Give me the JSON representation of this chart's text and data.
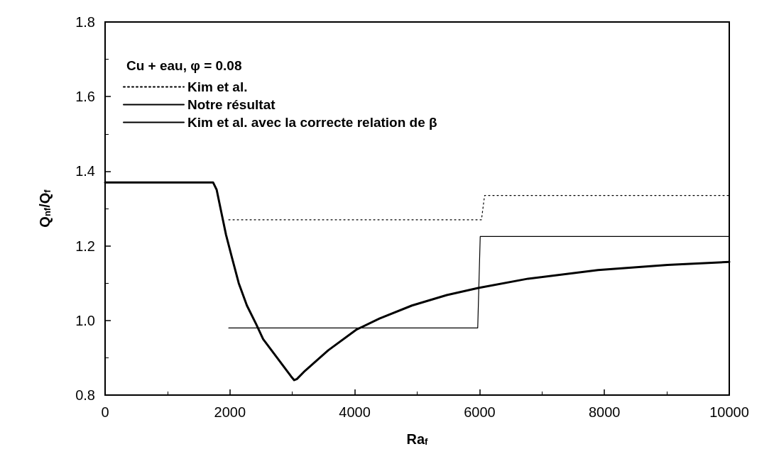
{
  "chart_data": {
    "type": "line",
    "legend_title": "Cu + eau, φ = 0.08",
    "xlabel": "Ra$_{f}$",
    "ylabel": "Q$_{nf}$/Q$_{f}$",
    "xlim": [
      0,
      10000
    ],
    "xticks": [
      0,
      2000,
      4000,
      6000,
      8000,
      10000
    ],
    "ylim": [
      0.8,
      1.8
    ],
    "yticks": [
      0.8,
      {
        "value": 1,
        "label": "1.0"
      },
      1.2,
      1.4,
      1.6,
      1.8
    ],
    "grid": false,
    "legend": "top left",
    "marker": "none",
    "series": [
      {
        "name": "Kim et al.",
        "color": "#000000",
        "line_style": "dotted",
        "x": [
          1980,
          6030,
          6080,
          10000
        ],
        "values": [
          1.27,
          1.27,
          1.335,
          1.335
        ]
      },
      {
        "name": "Notre résultat",
        "color": "#000000",
        "line_style": "solid",
        "x": [
          0,
          1730,
          1788,
          1862,
          1937,
          2030,
          2141,
          2272,
          2421,
          2532,
          2756,
          2980,
          3030,
          3073,
          3203,
          3575,
          4022,
          4395,
          4916,
          5475,
          5978,
          6778,
          7896,
          9013,
          10000
        ],
        "values": [
          1.37,
          1.37,
          1.35,
          1.29,
          1.23,
          1.17,
          1.1,
          1.04,
          0.99,
          0.95,
          0.9,
          0.85,
          0.84,
          0.843,
          0.865,
          0.92,
          0.975,
          1.005,
          1.04,
          1.068,
          1.087,
          1.112,
          1.135,
          1.149,
          1.157
        ]
      },
      {
        "name": "Kim et al. avec la correcte relation de β",
        "color": "#000000",
        "line_style": "solid",
        "x": [
          1980,
          5970,
          6010,
          10000
        ],
        "values": [
          0.98,
          0.98,
          1.225,
          1.225
        ]
      }
    ]
  }
}
